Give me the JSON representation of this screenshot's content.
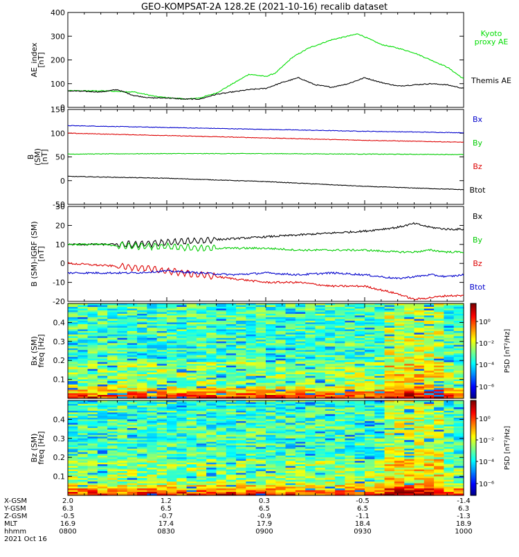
{
  "title": "GEO-KOMPSAT-2A 128.2E (2021-10-16) recalib dataset",
  "time_ticks": [
    "0800",
    "0830",
    "0900",
    "0930",
    "1000"
  ],
  "chart_data": [
    {
      "id": "ae",
      "type": "line",
      "ylabel": [
        "AE_index",
        "[nT]"
      ],
      "ylim": [
        0,
        400
      ],
      "yticks": [
        0,
        100,
        200,
        300,
        400
      ],
      "x_range_hhmm": [
        "0800",
        "1000"
      ],
      "series": [
        {
          "name": "Kyoto proxy AE",
          "label_lines": [
            "Kyoto",
            "proxy AE"
          ],
          "color": "#00dd00",
          "x": [
            "0800",
            "0810",
            "0820",
            "0827",
            "0831",
            "0836",
            "0840",
            "0845",
            "0850",
            "0855",
            "0900",
            "0903",
            "0908",
            "0913",
            "0920",
            "0928",
            "0935",
            "0940",
            "0945",
            "0950",
            "0955",
            "1000"
          ],
          "y": [
            70,
            70,
            65,
            45,
            40,
            35,
            40,
            60,
            100,
            140,
            130,
            145,
            210,
            250,
            285,
            310,
            265,
            250,
            230,
            200,
            170,
            120
          ]
        },
        {
          "name": "Themis AE",
          "label_lines": [
            "Themis AE"
          ],
          "color": "#000000",
          "x": [
            "0800",
            "0810",
            "0815",
            "0820",
            "0825",
            "0830",
            "0835",
            "0840",
            "0845",
            "0850",
            "0855",
            "0900",
            "0905",
            "0910",
            "0915",
            "0920",
            "0925",
            "0930",
            "0935",
            "0940",
            "0945",
            "0950",
            "0955",
            "1000"
          ],
          "y": [
            70,
            65,
            75,
            50,
            40,
            40,
            35,
            35,
            55,
            65,
            75,
            80,
            105,
            125,
            95,
            85,
            100,
            125,
            105,
            90,
            95,
            100,
            95,
            80
          ]
        }
      ]
    },
    {
      "id": "bgsm",
      "type": "line",
      "ylabel": [
        "B",
        "(SM)",
        "[nT]"
      ],
      "ylim": [
        -50,
        150
      ],
      "yticks": [
        -50,
        0,
        50,
        100,
        150
      ],
      "series": [
        {
          "name": "Bx",
          "label_lines": [
            "Bx"
          ],
          "color": "#0000cc",
          "x": [
            "0800",
            "0830",
            "0900",
            "0930",
            "1000"
          ],
          "y": [
            116,
            112,
            108,
            104,
            101
          ]
        },
        {
          "name": "By",
          "label_lines": [
            "By"
          ],
          "color": "#00cc00",
          "x": [
            "0800",
            "0830",
            "0900",
            "0930",
            "1000"
          ],
          "y": [
            56,
            57,
            57,
            56,
            55
          ]
        },
        {
          "name": "Bz",
          "label_lines": [
            "Bz"
          ],
          "color": "#dd0000",
          "x": [
            "0800",
            "0830",
            "0900",
            "0930",
            "1000"
          ],
          "y": [
            100,
            95,
            90,
            85,
            81
          ]
        },
        {
          "name": "Btot",
          "label_lines": [
            "Btot"
          ],
          "color": "#000000",
          "x": [
            "0800",
            "0830",
            "0900",
            "0930",
            "1000"
          ],
          "y": [
            9,
            5,
            -2,
            -12,
            -19
          ]
        }
      ]
    },
    {
      "id": "bigrf",
      "type": "line",
      "ylabel": [
        "B (SM)-IGRF (SM)",
        "[nT]"
      ],
      "ylim": [
        -20,
        30
      ],
      "yticks": [
        -20,
        -10,
        0,
        10,
        20,
        30
      ],
      "series": [
        {
          "name": "Bx",
          "label_lines": [
            "Bx"
          ],
          "color": "#000000",
          "x": [
            "0800",
            "0810",
            "0820",
            "0830",
            "0840",
            "0850",
            "0900",
            "0910",
            "0920",
            "0930",
            "0940",
            "0945",
            "0950",
            "0955",
            "1000"
          ],
          "y": [
            10,
            10,
            10,
            11,
            12,
            13,
            14,
            15,
            16,
            17,
            19,
            21,
            19,
            18,
            18
          ]
        },
        {
          "name": "By",
          "label_lines": [
            "By"
          ],
          "color": "#00cc00",
          "x": [
            "0800",
            "0810",
            "0820",
            "0830",
            "0840",
            "0850",
            "0900",
            "0910",
            "0920",
            "0930",
            "0940",
            "0945",
            "0950",
            "0955",
            "1000"
          ],
          "y": [
            10,
            10,
            9,
            9,
            8,
            8,
            8,
            7,
            7,
            7,
            6,
            6,
            7,
            6,
            6
          ]
        },
        {
          "name": "Bz",
          "label_lines": [
            "Bz"
          ],
          "color": "#dd0000",
          "x": [
            "0800",
            "0810",
            "0820",
            "0830",
            "0840",
            "0850",
            "0900",
            "0910",
            "0920",
            "0930",
            "0940",
            "0945",
            "0950",
            "0955",
            "1000"
          ],
          "y": [
            0,
            -1,
            -2,
            -4,
            -6,
            -8,
            -10,
            -10,
            -12,
            -12,
            -16,
            -19,
            -18,
            -17,
            -17
          ]
        },
        {
          "name": "Btot",
          "label_lines": [
            "Btot"
          ],
          "color": "#0000cc",
          "x": [
            "0800",
            "0810",
            "0820",
            "0830",
            "0840",
            "0850",
            "0900",
            "0910",
            "0920",
            "0930",
            "0940",
            "0945",
            "0950",
            "0955",
            "1000"
          ],
          "y": [
            -5,
            -5,
            -5,
            -4,
            -5,
            -6,
            -5,
            -6,
            -5,
            -6,
            -8,
            -7,
            -6,
            -7,
            -6
          ]
        }
      ]
    },
    {
      "id": "bx_spec",
      "type": "heatmap",
      "ylabel": [
        "Bx (SM)",
        "freq [Hz]"
      ],
      "ylim": [
        0,
        0.5
      ],
      "yticks": [
        0.1,
        0.2,
        0.3,
        0.4
      ],
      "colorbar": {
        "label": "PSD [nT²/Hz]",
        "ticks": [
          "10⁰",
          "10⁻²",
          "10⁻⁴",
          "10⁻⁶"
        ]
      }
    },
    {
      "id": "bz_spec",
      "type": "heatmap",
      "ylabel": [
        "Bz (SM)",
        "freq [Hz]"
      ],
      "ylim": [
        0,
        0.5
      ],
      "yticks": [
        0.1,
        0.2,
        0.3,
        0.4
      ],
      "colorbar": {
        "label": "PSD [nT²/Hz]",
        "ticks": [
          "10⁰",
          "10⁻²",
          "10⁻⁴",
          "10⁻⁶"
        ]
      }
    }
  ],
  "ephemeris": {
    "rows": [
      {
        "label": "X-GSM",
        "values": [
          "2.0",
          "1.2",
          "0.3",
          "-0.5",
          "-1.4"
        ]
      },
      {
        "label": "Y-GSM",
        "values": [
          "6.3",
          "6.5",
          "6.5",
          "6.5",
          "6.3"
        ]
      },
      {
        "label": "Z-GSM",
        "values": [
          "-0.5",
          "-0.7",
          "-0.9",
          "-1.1",
          "-1.3"
        ]
      },
      {
        "label": "MLT",
        "values": [
          "16.9",
          "17.4",
          "17.9",
          "18.4",
          "18.9"
        ]
      },
      {
        "label": "hhmm",
        "values": [
          "0800",
          "0830",
          "0900",
          "0930",
          "1000"
        ]
      }
    ],
    "date": "2021 Oct 16"
  }
}
